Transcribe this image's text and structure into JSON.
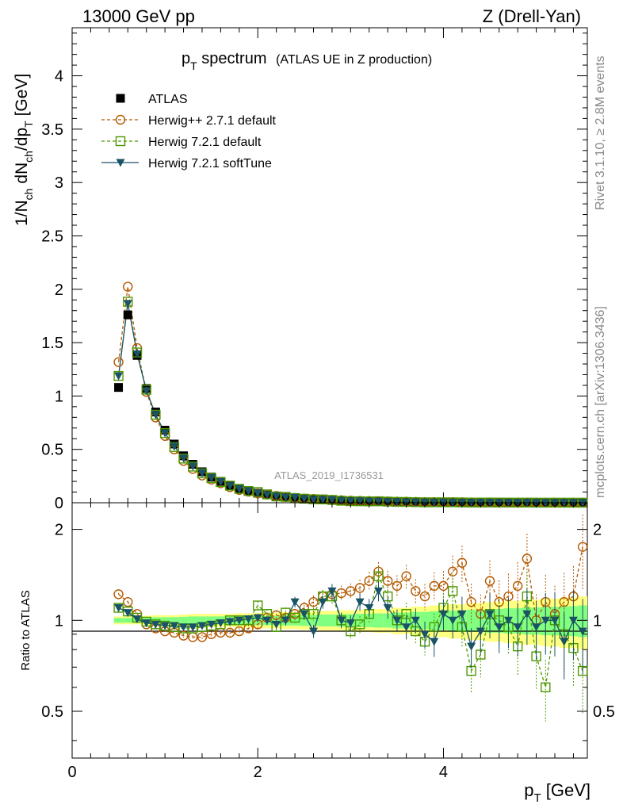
{
  "header": {
    "left": "13000 GeV pp",
    "right": "Z (Drell-Yan)"
  },
  "title": {
    "main": "p",
    "main_sub": "T",
    "main_rest": " spectrum",
    "paren": "(ATLAS UE in Z production)"
  },
  "watermark": "ATLAS_2019_I1736531",
  "side_text": {
    "rivet": "Rivet 3.1.10, ≥ 2.8M events",
    "mcplots": "mcplots.cern.ch [arXiv:1306.3436]"
  },
  "axes": {
    "top_ylabel": {
      "a": "1/N",
      "a_sub": "ch",
      "b": " dN",
      "b_sub": "ch",
      "c": "/dp",
      "c_sub": "T",
      "d": " [GeV]"
    },
    "ratio_ylabel": "Ratio to ATLAS",
    "xlabel": {
      "a": "p",
      "a_sub": "T",
      "b": " [GeV]"
    },
    "top_yticks": [
      "0",
      "0.5",
      "1",
      "1.5",
      "2",
      "2.5",
      "3",
      "3.5",
      "4"
    ],
    "ratio_yticks": [
      "0.5",
      "1",
      "2"
    ],
    "xticks": [
      "0",
      "2",
      "4"
    ]
  },
  "legend": [
    {
      "label": "ATLAS",
      "color": "#000000",
      "marker": "square-filled"
    },
    {
      "label": "Herwig++ 2.7.1 default",
      "color": "#b35900",
      "marker": "circle-open"
    },
    {
      "label": "Herwig 7.2.1 default",
      "color": "#4d9900",
      "marker": "square-open"
    },
    {
      "label": "Herwig 7.2.1 softTune",
      "color": "#1a5266",
      "marker": "triangle-down-filled"
    }
  ],
  "chart_data": {
    "type": "scatter",
    "title": "pT spectrum (ATLAS UE in Z production)",
    "xlabel": "pT [GeV]",
    "ylabel": "1/Nch dNch/dpT [GeV]",
    "xlim": [
      0,
      5.55
    ],
    "ylim": [
      0,
      4.45
    ],
    "ratio_ylim": [
      0.35,
      2.45
    ],
    "ratio_scale": "log",
    "x": [
      0.5,
      0.6,
      0.7,
      0.8,
      0.9,
      1.0,
      1.1,
      1.2,
      1.3,
      1.4,
      1.5,
      1.6,
      1.7,
      1.8,
      1.9,
      2.0,
      2.1,
      2.2,
      2.3,
      2.4,
      2.5,
      2.6,
      2.7,
      2.8,
      2.9,
      3.0,
      3.1,
      3.2,
      3.3,
      3.4,
      3.5,
      3.6,
      3.7,
      3.8,
      3.9,
      4.0,
      4.1,
      4.2,
      4.3,
      4.4,
      4.5,
      4.6,
      4.7,
      4.8,
      4.9,
      5.0,
      5.1,
      5.2,
      5.3,
      5.4,
      5.5
    ],
    "series": [
      {
        "name": "ATLAS",
        "values": [
          1.08,
          1.76,
          1.38,
          1.07,
          0.85,
          0.68,
          0.55,
          0.44,
          0.36,
          0.29,
          0.24,
          0.2,
          0.16,
          0.13,
          0.11,
          0.09,
          0.075,
          0.062,
          0.052,
          0.043,
          0.036,
          0.031,
          0.026,
          0.022,
          0.019,
          0.016,
          0.014,
          0.012,
          0.01,
          0.009,
          0.008,
          0.007,
          0.006,
          0.005,
          0.0045,
          0.004,
          0.0035,
          0.003,
          0.0027,
          0.0024,
          0.0021,
          0.0019,
          0.0017,
          0.0015,
          0.0013,
          0.0012,
          0.0011,
          0.001,
          0.0009,
          0.0008,
          0.0007
        ]
      },
      {
        "name": "Herwig++ 2.7.1 default",
        "ratio": [
          1.22,
          1.15,
          1.05,
          0.97,
          0.94,
          0.92,
          0.91,
          0.89,
          0.88,
          0.88,
          0.9,
          0.91,
          0.91,
          0.92,
          0.94,
          0.97,
          1.02,
          1.04,
          1.02,
          1.05,
          1.1,
          1.15,
          1.2,
          1.22,
          1.23,
          1.25,
          1.28,
          1.35,
          1.45,
          1.35,
          1.3,
          1.4,
          1.25,
          1.2,
          1.3,
          1.3,
          1.45,
          1.55,
          1.15,
          1.05,
          1.35,
          1.15,
          1.2,
          1.3,
          1.6,
          1.0,
          1.15,
          1.05,
          1.15,
          1.2,
          1.75
        ]
      },
      {
        "name": "Herwig 7.2.1 default",
        "ratio": [
          1.1,
          1.07,
          1.02,
          0.99,
          0.97,
          0.96,
          0.95,
          0.94,
          0.94,
          0.95,
          0.96,
          0.97,
          1.0,
          1.0,
          1.0,
          1.12,
          1.05,
          0.95,
          1.06,
          1.02,
          1.05,
          1.05,
          1.2,
          1.2,
          1.0,
          0.92,
          0.97,
          1.05,
          1.4,
          1.2,
          1.0,
          1.05,
          0.92,
          0.85,
          0.95,
          1.1,
          1.25,
          0.95,
          0.68,
          0.77,
          1.05,
          1.0,
          0.95,
          0.82,
          1.2,
          0.76,
          0.6,
          1.0,
          0.9,
          0.81,
          0.68
        ]
      },
      {
        "name": "Herwig 7.2.1 softTune",
        "ratio": [
          1.1,
          1.06,
          1.01,
          0.98,
          0.97,
          0.96,
          0.96,
          0.95,
          0.95,
          0.96,
          0.97,
          0.98,
          0.99,
          1.0,
          1.01,
          1.02,
          1.0,
          0.97,
          1.0,
          1.15,
          1.05,
          0.92,
          1.15,
          1.25,
          1.0,
          0.98,
          1.15,
          1.1,
          1.25,
          1.1,
          1.0,
          0.95,
          1.0,
          0.9,
          0.85,
          1.05,
          1.0,
          1.05,
          0.82,
          0.92,
          1.05,
          0.95,
          1.0,
          0.95,
          1.05,
          0.95,
          1.0,
          1.0,
          0.85,
          1.0,
          0.92
        ]
      }
    ],
    "band_rel_err": [
      0.03,
      0.03,
      0.03,
      0.035,
      0.04,
      0.04,
      0.04,
      0.045,
      0.05,
      0.05,
      0.05,
      0.05,
      0.05,
      0.055,
      0.055,
      0.06,
      0.06,
      0.06,
      0.065,
      0.065,
      0.07,
      0.07,
      0.075,
      0.075,
      0.08,
      0.08,
      0.085,
      0.085,
      0.09,
      0.09,
      0.1,
      0.1,
      0.11,
      0.11,
      0.12,
      0.12,
      0.13,
      0.13,
      0.14,
      0.14,
      0.15,
      0.15,
      0.16,
      0.16,
      0.17,
      0.17,
      0.18,
      0.18,
      0.19,
      0.19,
      0.2
    ],
    "mc_rel_err": [
      0.01,
      0.01,
      0.01,
      0.01,
      0.01,
      0.01,
      0.015,
      0.015,
      0.015,
      0.02,
      0.02,
      0.02,
      0.025,
      0.025,
      0.03,
      0.03,
      0.035,
      0.035,
      0.04,
      0.04,
      0.045,
      0.05,
      0.05,
      0.055,
      0.06,
      0.06,
      0.065,
      0.07,
      0.075,
      0.08,
      0.085,
      0.09,
      0.095,
      0.1,
      0.11,
      0.12,
      0.13,
      0.14,
      0.15,
      0.16,
      0.17,
      0.18,
      0.19,
      0.2,
      0.21,
      0.22,
      0.23,
      0.24,
      0.25,
      0.26,
      0.28
    ]
  }
}
